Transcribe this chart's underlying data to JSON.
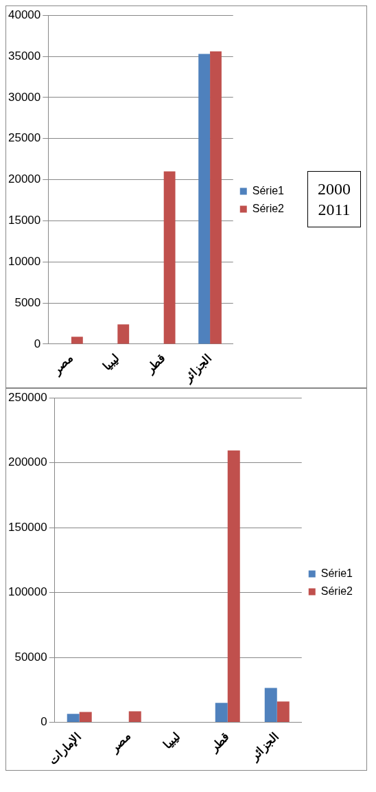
{
  "chart_data": [
    {
      "type": "bar",
      "categories": [
        "مصر",
        "ليبيا",
        "قطر",
        "الجزائر"
      ],
      "series": [
        {
          "name": "Série1",
          "color": "#4f81bd",
          "values": [
            0,
            0,
            0,
            35300
          ]
        },
        {
          "name": "Série2",
          "color": "#c0504d",
          "values": [
            900,
            2400,
            21000,
            35600
          ]
        }
      ],
      "ylim": [
        0,
        40000
      ],
      "yticks": [
        0,
        5000,
        10000,
        15000,
        20000,
        25000,
        30000,
        35000,
        40000
      ],
      "grid": "y",
      "legend": "right",
      "annotations": [
        "2000",
        "2011"
      ]
    },
    {
      "type": "bar",
      "categories": [
        "الإمارات",
        "مصر",
        "ليبيا",
        "قطر",
        "الجزائر"
      ],
      "series": [
        {
          "name": "Série1",
          "color": "#4f81bd",
          "values": [
            6500,
            0,
            0,
            15000,
            26500
          ]
        },
        {
          "name": "Série2",
          "color": "#c0504d",
          "values": [
            8000,
            8500,
            0,
            209500,
            16000
          ]
        }
      ],
      "ylim": [
        0,
        250000
      ],
      "yticks": [
        0,
        50000,
        100000,
        150000,
        200000,
        250000
      ],
      "grid": "y",
      "legend": "right"
    }
  ]
}
